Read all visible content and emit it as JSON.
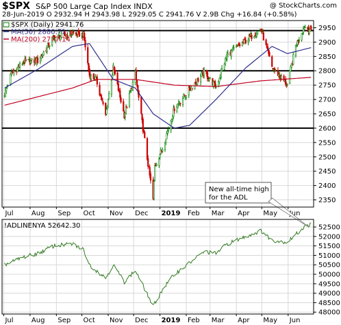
{
  "header": {
    "symbol": "$SPX",
    "subtitle": "S&P 500 Large Cap Index  INDX",
    "watermark": "@ StockCharts.com",
    "ohlc_line": "28-Jun-2019    O 2932.94  H 2943.98  L 2929.05  C 2941.76  V 2.9B  Chg +16.84 (+0.58%)"
  },
  "chart_data": [
    {
      "type": "candlestick",
      "legend": {
        "price": "$SPX (Daily) 2941.76",
        "ma50": "MA(50) 2880.71",
        "ma200": "MA(200) 2777.14"
      },
      "ylim": [
        2325,
        2975
      ],
      "yticks": [
        2350,
        2400,
        2450,
        2500,
        2550,
        2600,
        2650,
        2700,
        2750,
        2800,
        2850,
        2900,
        2950
      ],
      "horizontal_lines": [
        2600,
        2800,
        2940
      ],
      "ohlc_anchors": [
        [
          "2018-07-02",
          2720
        ],
        [
          "2018-07-10",
          2790
        ],
        [
          "2018-07-24",
          2830
        ],
        [
          "2018-08-10",
          2835
        ],
        [
          "2018-08-29",
          2915
        ],
        [
          "2018-09-20",
          2930
        ],
        [
          "2018-10-03",
          2925
        ],
        [
          "2018-10-10",
          2785
        ],
        [
          "2018-10-18",
          2770
        ],
        [
          "2018-10-29",
          2645
        ],
        [
          "2018-11-07",
          2810
        ],
        [
          "2018-11-20",
          2645
        ],
        [
          "2018-12-03",
          2790
        ],
        [
          "2018-12-10",
          2640
        ],
        [
          "2018-12-24",
          2351
        ],
        [
          "2018-12-26",
          2467
        ],
        [
          "2019-01-04",
          2530
        ],
        [
          "2019-01-18",
          2670
        ],
        [
          "2019-02-05",
          2735
        ],
        [
          "2019-02-22",
          2795
        ],
        [
          "2019-03-08",
          2745
        ],
        [
          "2019-03-21",
          2855
        ],
        [
          "2019-04-12",
          2905
        ],
        [
          "2019-04-30",
          2946
        ],
        [
          "2019-05-13",
          2812
        ],
        [
          "2019-05-31",
          2752
        ],
        [
          "2019-06-10",
          2886
        ],
        [
          "2019-06-20",
          2955
        ],
        [
          "2019-06-28",
          2941.76
        ]
      ],
      "ma50_anchors": [
        [
          "2018-07-02",
          2740
        ],
        [
          "2018-08-10",
          2805
        ],
        [
          "2018-09-20",
          2885
        ],
        [
          "2018-10-10",
          2895
        ],
        [
          "2018-11-07",
          2770
        ],
        [
          "2018-12-03",
          2740
        ],
        [
          "2018-12-24",
          2650
        ],
        [
          "2019-01-18",
          2600
        ],
        [
          "2019-02-05",
          2610
        ],
        [
          "2019-03-08",
          2700
        ],
        [
          "2019-04-12",
          2810
        ],
        [
          "2019-05-13",
          2885
        ],
        [
          "2019-05-31",
          2860
        ],
        [
          "2019-06-28",
          2880.71
        ]
      ],
      "ma200_anchors": [
        [
          "2018-07-02",
          2680
        ],
        [
          "2018-09-20",
          2740
        ],
        [
          "2018-10-18",
          2770
        ],
        [
          "2018-12-03",
          2770
        ],
        [
          "2019-01-18",
          2750
        ],
        [
          "2019-03-08",
          2745
        ],
        [
          "2019-04-30",
          2765
        ],
        [
          "2019-06-28",
          2777.14
        ]
      ],
      "annotation": "New all-time high\nfor the ADL"
    },
    {
      "type": "line",
      "legend": "!ADLINENYA 52642.30",
      "ylim": [
        47900,
        52900
      ],
      "yticks": [
        48000,
        48500,
        49000,
        49500,
        50000,
        50500,
        51000,
        51500,
        52000,
        52500
      ],
      "anchors": [
        [
          "2018-07-02",
          50500
        ],
        [
          "2018-07-24",
          50900
        ],
        [
          "2018-08-10",
          51100
        ],
        [
          "2018-08-29",
          51500
        ],
        [
          "2018-09-20",
          51600
        ],
        [
          "2018-10-03",
          51300
        ],
        [
          "2018-10-10",
          50500
        ],
        [
          "2018-10-29",
          49800
        ],
        [
          "2018-11-07",
          50500
        ],
        [
          "2018-11-20",
          49600
        ],
        [
          "2018-12-03",
          50200
        ],
        [
          "2018-12-10",
          49600
        ],
        [
          "2018-12-24",
          48300
        ],
        [
          "2019-01-04",
          49200
        ],
        [
          "2019-01-18",
          50000
        ],
        [
          "2019-02-05",
          50600
        ],
        [
          "2019-02-22",
          51200
        ],
        [
          "2019-03-08",
          51100
        ],
        [
          "2019-03-21",
          51600
        ],
        [
          "2019-04-12",
          52000
        ],
        [
          "2019-04-30",
          52300
        ],
        [
          "2019-05-13",
          51800
        ],
        [
          "2019-05-31",
          51700
        ],
        [
          "2019-06-10",
          52100
        ],
        [
          "2019-06-20",
          52500
        ],
        [
          "2019-06-28",
          52642.3
        ]
      ]
    }
  ],
  "x_axis": {
    "months": [
      {
        "label": "Jul",
        "date": "2018-07-01"
      },
      {
        "label": "Aug",
        "date": "2018-08-01"
      },
      {
        "label": "Sep",
        "date": "2018-09-01"
      },
      {
        "label": "Oct",
        "date": "2018-10-01"
      },
      {
        "label": "Nov",
        "date": "2018-11-01"
      },
      {
        "label": "Dec",
        "date": "2018-12-01"
      },
      {
        "label": "2019",
        "date": "2019-01-01"
      },
      {
        "label": "Feb",
        "date": "2019-02-01"
      },
      {
        "label": "Mar",
        "date": "2019-03-01"
      },
      {
        "label": "Apr",
        "date": "2019-04-01"
      },
      {
        "label": "May",
        "date": "2019-05-01"
      },
      {
        "label": "Jun",
        "date": "2019-06-01"
      }
    ],
    "start": "2018-06-29",
    "end": "2019-07-01"
  },
  "colors": {
    "up": "#008000",
    "down": "#cc0000",
    "ma50": "#2e2f8c",
    "ma200": "#c00020",
    "adl": "#2f7a1f",
    "grid": "#d8d8d8",
    "hline": "#000000",
    "arrow": "#888888"
  }
}
